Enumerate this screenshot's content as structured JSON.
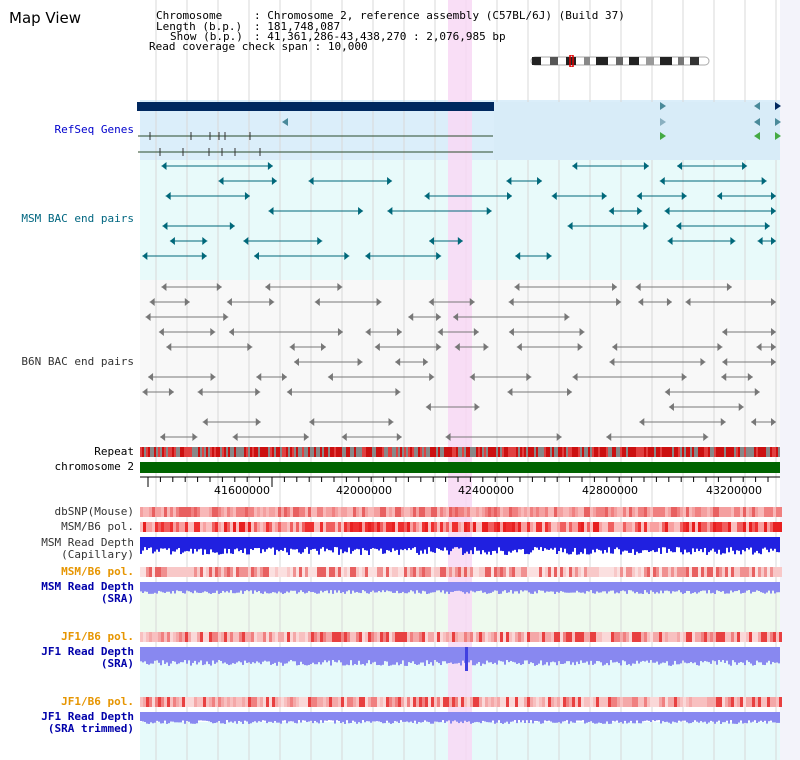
{
  "title": "Map View",
  "header": {
    "chromosome_label": "Chromosome",
    "chromosome_value": "Chromosome 2, reference assembly (C57BL/6J) (Build 37)",
    "length_label": "Length (b.p.)",
    "length_value": "181,748,087",
    "show_label": "Show (b.p.)",
    "show_value": "41,361,286-43,438,270 : 2,076,985 bp",
    "coverage_label": "Read coverage check span",
    "coverage_value": "10,000"
  },
  "tracks": {
    "refseq": {
      "label": "RefSeq Genes",
      "color": "#0000cc"
    },
    "msm_bac": {
      "label": "MSM BAC end pairs",
      "color": "#006680"
    },
    "b6n_bac": {
      "label": "B6N BAC end pairs",
      "color": "#333333"
    },
    "repeat": {
      "label": "Repeat",
      "color": "#000000"
    },
    "chromosome": {
      "label": "chromosome 2",
      "color": "#000000"
    },
    "dbsnp": {
      "label": "dbSNP(Mouse)",
      "color": "#333333"
    },
    "msm_b6_pol_1": {
      "label": "MSM/B6 pol.",
      "color": "#333333"
    },
    "msm_read_depth_cap": {
      "label1": "MSM Read Depth",
      "label2": "(Capillary)",
      "color": "#333333"
    },
    "msm_b6_pol_2": {
      "label": "MSM/B6 pol.",
      "color": "#e69500"
    },
    "msm_read_depth_sra": {
      "label1": "MSM Read Depth",
      "label2": "(SRA)",
      "color": "#0000aa"
    },
    "jf1_b6_pol_1": {
      "label": "JF1/B6 pol.",
      "color": "#e69500"
    },
    "jf1_read_depth_sra": {
      "label1": "JF1 Read Depth",
      "label2": "(SRA)",
      "color": "#0000aa"
    },
    "jf1_b6_pol_2": {
      "label": "JF1/B6 pol.",
      "color": "#e69500"
    },
    "jf1_read_depth_trim": {
      "label1": "JF1 Read Depth",
      "label2": "(SRA trimmed)",
      "color": "#0000aa"
    }
  },
  "axis": {
    "ticks": [
      "41600000",
      "42000000",
      "42400000",
      "42800000",
      "43200000"
    ]
  },
  "colors": {
    "refseq_bg": "#dbeefa",
    "bac_bg": "#e8fafa",
    "b6n_bg": "#f8f8f8",
    "highlight": "#f8d8f4",
    "gridline": "#d8d8d8",
    "gene_dark": "#00285f",
    "msm_feature": "#00687a",
    "chromosome_bar": "#006400",
    "read_depth_blue": "#2020e0",
    "read_depth_sra": "#8888f0"
  }
}
